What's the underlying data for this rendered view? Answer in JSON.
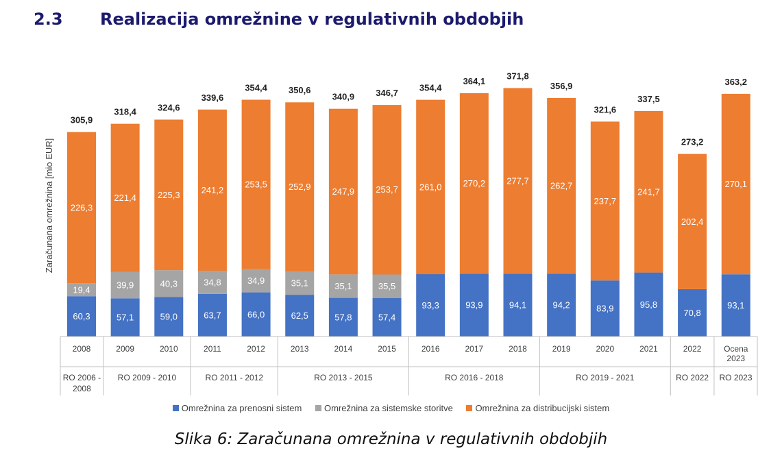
{
  "section": {
    "number": "2.3",
    "title": "Realizacija omrežnine v regulativnih obdobjih"
  },
  "caption": "Slika 6: Zaračunana omrežnina v regulativnih obdobjih",
  "colors": {
    "prenos": "#4472c4",
    "storitve": "#a5a5a5",
    "distribucija": "#ed7d31"
  },
  "chart_data": {
    "type": "bar",
    "stacked": true,
    "ylabel": "Zaračunana omrežnina [mio EUR]",
    "grid": false,
    "legend_position": "bottom",
    "categories": [
      "2008",
      "2009",
      "2010",
      "2011",
      "2012",
      "2013",
      "2014",
      "2015",
      "2016",
      "2017",
      "2018",
      "2019",
      "2020",
      "2021",
      "2022",
      "Ocena 2023"
    ],
    "series": [
      {
        "name": "Omrežnina za prenosni sistem",
        "color": "#4472c4",
        "values": [
          60.3,
          57.1,
          59.0,
          63.7,
          66.0,
          62.5,
          57.8,
          57.4,
          93.3,
          93.9,
          94.1,
          94.2,
          83.9,
          95.8,
          70.8,
          93.1
        ],
        "labels": [
          "60,3",
          "57,1",
          "59,0",
          "63,7",
          "66,0",
          "62,5",
          "57,8",
          "57,4",
          "93,3",
          "93,9",
          "94,1",
          "94,2",
          "83,9",
          "95,8",
          "70,8",
          "93,1"
        ]
      },
      {
        "name": "Omrežnina za sistemske storitve",
        "color": "#a5a5a5",
        "values": [
          19.4,
          39.9,
          40.3,
          34.8,
          34.9,
          35.1,
          35.1,
          35.5,
          null,
          null,
          null,
          null,
          null,
          null,
          null,
          null
        ],
        "labels": [
          "19,4",
          "39,9",
          "40,3",
          "34,8",
          "34,9",
          "35,1",
          "35,1",
          "35,5",
          null,
          null,
          null,
          null,
          null,
          null,
          null,
          null
        ]
      },
      {
        "name": "Omrežnina za distribucijski sistem",
        "color": "#ed7d31",
        "values": [
          226.3,
          221.4,
          225.3,
          241.2,
          253.5,
          252.9,
          247.9,
          253.7,
          261.0,
          270.2,
          277.7,
          262.7,
          237.7,
          241.7,
          202.4,
          270.1
        ],
        "labels": [
          "226,3",
          "221,4",
          "225,3",
          "241,2",
          "253,5",
          "252,9",
          "247,9",
          "253,7",
          "261,0",
          "270,2",
          "277,7",
          "262,7",
          "237,7",
          "241,7",
          "202,4",
          "270,1"
        ]
      }
    ],
    "totals": [
      305.9,
      318.4,
      324.6,
      339.6,
      354.4,
      350.6,
      340.9,
      346.7,
      354.4,
      364.1,
      371.8,
      356.9,
      321.6,
      337.5,
      273.2,
      363.2
    ],
    "total_labels": [
      "305,9",
      "318,4",
      "324,6",
      "339,6",
      "354,4",
      "350,6",
      "340,9",
      "346,7",
      "354,4",
      "364,1",
      "371,8",
      "356,9",
      "321,6",
      "337,5",
      "273,2",
      "363,2"
    ],
    "periods": [
      {
        "label": "RO 2006 - 2008",
        "start": 0,
        "end": 0
      },
      {
        "label": "RO 2009 - 2010",
        "start": 1,
        "end": 2
      },
      {
        "label": "RO 2011 - 2012",
        "start": 3,
        "end": 4
      },
      {
        "label": "RO 2013 - 2015",
        "start": 5,
        "end": 7
      },
      {
        "label": "RO 2016 - 2018",
        "start": 8,
        "end": 10
      },
      {
        "label": "RO 2019 - 2021",
        "start": 11,
        "end": 13
      },
      {
        "label": "RO 2022",
        "start": 14,
        "end": 14
      },
      {
        "label": "RO 2023",
        "start": 15,
        "end": 15
      }
    ]
  }
}
